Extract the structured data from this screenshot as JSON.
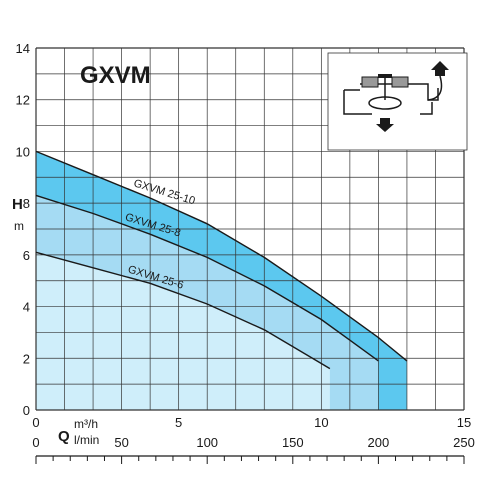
{
  "chart_data": {
    "type": "area",
    "title": "GXVM",
    "ylabel": "H",
    "yunit": "m",
    "xlabel": "Q",
    "xunit_primary": "m³/h",
    "xunit_secondary": "l/min",
    "xlim": [
      0,
      15
    ],
    "ylim": [
      0,
      14
    ],
    "x_ticks": [
      "0",
      "5",
      "10",
      "15"
    ],
    "x2_ticks": [
      "0",
      "50",
      "100",
      "150",
      "200",
      "250"
    ],
    "y_ticks": [
      "0",
      "2",
      "4",
      "6",
      "8",
      "10",
      "12",
      "14"
    ],
    "grid": true,
    "series": [
      {
        "name": "GXVM 25-10",
        "x": [
          0,
          2,
          4,
          6,
          8,
          10,
          11,
          12,
          13
        ],
        "y": [
          10.0,
          9.1,
          8.2,
          7.2,
          5.9,
          4.4,
          3.6,
          2.8,
          1.9
        ]
      },
      {
        "name": "GXVM 25-8",
        "x": [
          0,
          2,
          4,
          6,
          8,
          10,
          11,
          12
        ],
        "y": [
          8.3,
          7.6,
          6.8,
          5.9,
          4.8,
          3.5,
          2.7,
          1.9
        ]
      },
      {
        "name": "GXVM 25-6",
        "x": [
          0,
          2,
          4,
          6,
          8,
          10,
          10.3
        ],
        "y": [
          6.1,
          5.5,
          4.9,
          4.1,
          3.1,
          1.8,
          1.6
        ]
      }
    ],
    "colors": {
      "background_region": "#cfeefa",
      "band_outer": "#5cc8ef",
      "band_inner": "#a5dbf3",
      "curve": "#1a1a1a",
      "grid": "#333333"
    },
    "inset_icon": "pump-cross-section-diagram"
  }
}
